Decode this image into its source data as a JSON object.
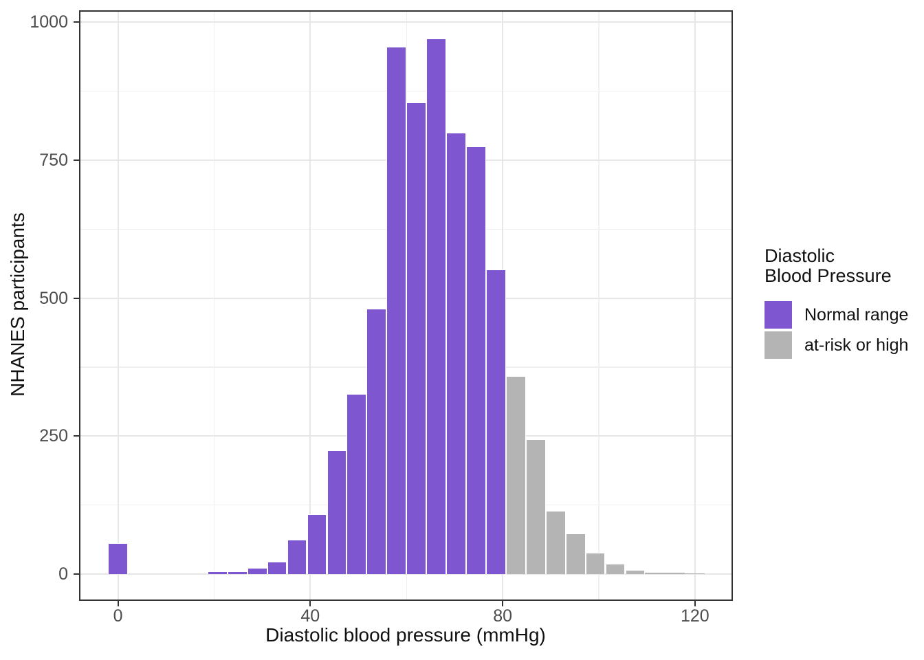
{
  "chart_data": {
    "type": "bar",
    "subtype": "histogram",
    "title": "",
    "xlabel": "Diastolic blood pressure (mmHg)",
    "ylabel": "NHANES participants",
    "x_ticks": [
      0,
      40,
      80,
      120
    ],
    "x_minor_ticks": [
      20,
      60,
      100
    ],
    "y_ticks": [
      0,
      250,
      500,
      750,
      1000
    ],
    "y_minor_ticks": [
      125,
      375,
      625,
      875
    ],
    "xlim": [
      -8.1,
      127.9
    ],
    "ylim": [
      -48.6,
      1021.5
    ],
    "binwidth": 4.1379,
    "grid": "on",
    "bins": {
      "centers": [
        0,
        4.14,
        8.28,
        12.41,
        16.55,
        20.69,
        24.83,
        28.97,
        33.1,
        37.24,
        41.38,
        45.52,
        49.66,
        53.79,
        57.93,
        62.07,
        66.21,
        70.34,
        74.48,
        78.62,
        82.76,
        86.9,
        91.03,
        95.17,
        99.31,
        103.45,
        107.59,
        111.72,
        115.86,
        120
      ],
      "counts": [
        56,
        0,
        0,
        0,
        0,
        5,
        5,
        11,
        23,
        62,
        109,
        224,
        326,
        481,
        955,
        855,
        971,
        800,
        775,
        552,
        359,
        244,
        115,
        74,
        39,
        19,
        7,
        3,
        2,
        1
      ],
      "groups": [
        "normal",
        "normal",
        "normal",
        "normal",
        "normal",
        "normal",
        "normal",
        "normal",
        "normal",
        "normal",
        "normal",
        "normal",
        "normal",
        "normal",
        "normal",
        "normal",
        "normal",
        "normal",
        "normal",
        "normal",
        "at_risk",
        "at_risk",
        "at_risk",
        "at_risk",
        "at_risk",
        "at_risk",
        "at_risk",
        "at_risk",
        "at_risk",
        "at_risk"
      ]
    },
    "colors": {
      "normal": "#7E57D0",
      "at_risk": "#B4B4B4",
      "gridline_major": "#E7E7E7",
      "gridline_minor": "#EFEFEF",
      "panel_border": "#333333",
      "tick_label": "#4D4D4D"
    },
    "legend": {
      "position": "right",
      "title_lines": [
        "Diastolic",
        "Blood Pressure"
      ],
      "entries": [
        {
          "label": "Normal range",
          "group": "normal"
        },
        {
          "label": "at-risk or high",
          "group": "at_risk"
        }
      ]
    }
  }
}
